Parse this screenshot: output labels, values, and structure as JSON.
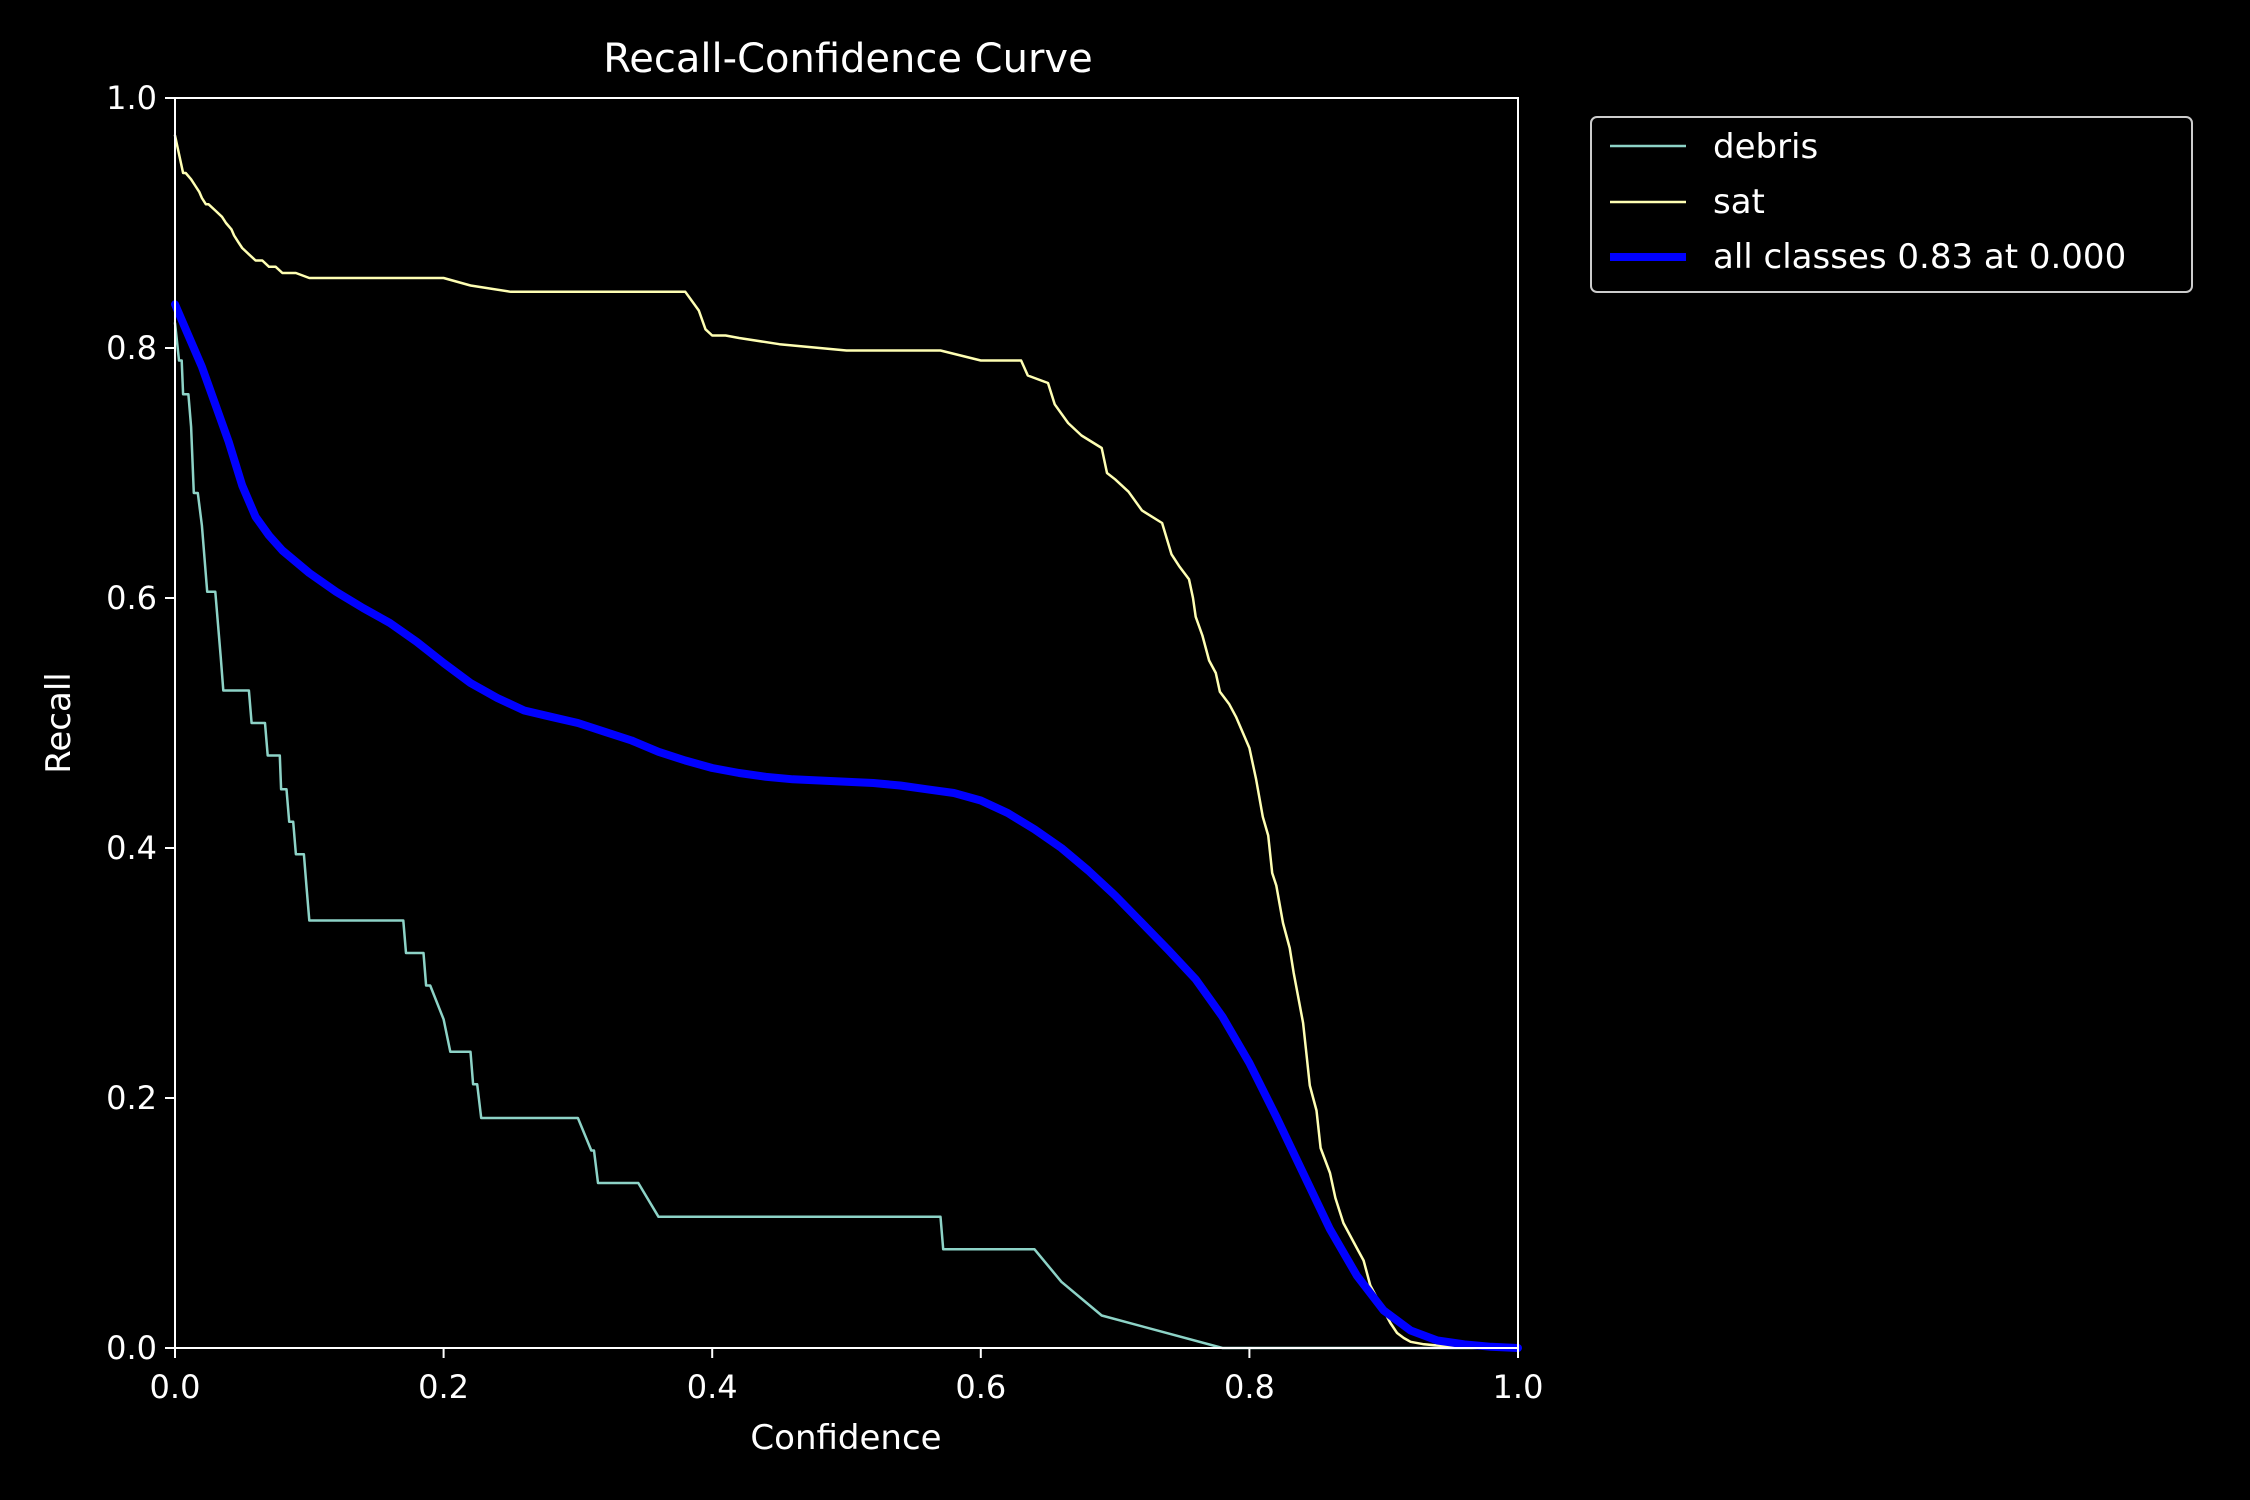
{
  "colors": {
    "background": "#000000",
    "axes": "#ffffff",
    "debris": "#8dd3c7",
    "sat": "#ffffb3",
    "all_classes": "#0000ff"
  },
  "chart_data": {
    "type": "line",
    "title": "Recall-Confidence Curve",
    "xlabel": "Confidence",
    "ylabel": "Recall",
    "xlim": [
      0.0,
      1.0
    ],
    "ylim": [
      0.0,
      1.0
    ],
    "xticks": [
      "0.0",
      "0.2",
      "0.4",
      "0.6",
      "0.8",
      "1.0"
    ],
    "yticks": [
      "0.0",
      "0.2",
      "0.4",
      "0.6",
      "0.8",
      "1.0"
    ],
    "grid": false,
    "legend_position": "outside top-right",
    "series": [
      {
        "name": "debris",
        "color": "#8dd3c7",
        "x": [
          0.0,
          0.002,
          0.003,
          0.005,
          0.006,
          0.008,
          0.01,
          0.012,
          0.014,
          0.017,
          0.02,
          0.022,
          0.024,
          0.027,
          0.03,
          0.032,
          0.034,
          0.036,
          0.055,
          0.057,
          0.067,
          0.069,
          0.078,
          0.079,
          0.083,
          0.085,
          0.088,
          0.09,
          0.096,
          0.098,
          0.1,
          0.102,
          0.17,
          0.172,
          0.185,
          0.187,
          0.19,
          0.2,
          0.205,
          0.22,
          0.222,
          0.225,
          0.228,
          0.3,
          0.31,
          0.312,
          0.315,
          0.345,
          0.36,
          0.57,
          0.572,
          0.64,
          0.66,
          0.69,
          0.78,
          0.8,
          1.0
        ],
        "y": [
          0.82,
          0.8,
          0.79,
          0.79,
          0.763,
          0.763,
          0.763,
          0.737,
          0.684,
          0.684,
          0.658,
          0.632,
          0.605,
          0.605,
          0.605,
          0.579,
          0.553,
          0.526,
          0.526,
          0.5,
          0.5,
          0.474,
          0.474,
          0.447,
          0.447,
          0.421,
          0.421,
          0.395,
          0.395,
          0.368,
          0.342,
          0.342,
          0.342,
          0.316,
          0.316,
          0.29,
          0.29,
          0.263,
          0.237,
          0.237,
          0.211,
          0.211,
          0.184,
          0.184,
          0.158,
          0.158,
          0.132,
          0.132,
          0.105,
          0.105,
          0.079,
          0.079,
          0.053,
          0.026,
          0.0,
          0.0,
          0.0
        ]
      },
      {
        "name": "sat",
        "color": "#ffffb3",
        "x": [
          0.0,
          0.002,
          0.004,
          0.006,
          0.008,
          0.012,
          0.015,
          0.018,
          0.02,
          0.023,
          0.025,
          0.03,
          0.035,
          0.038,
          0.042,
          0.044,
          0.047,
          0.05,
          0.055,
          0.06,
          0.065,
          0.07,
          0.075,
          0.08,
          0.085,
          0.09,
          0.095,
          0.1,
          0.15,
          0.2,
          0.22,
          0.25,
          0.3,
          0.35,
          0.38,
          0.39,
          0.395,
          0.4,
          0.41,
          0.42,
          0.45,
          0.5,
          0.55,
          0.57,
          0.6,
          0.63,
          0.635,
          0.64,
          0.65,
          0.655,
          0.665,
          0.675,
          0.69,
          0.694,
          0.7,
          0.71,
          0.72,
          0.735,
          0.742,
          0.748,
          0.755,
          0.758,
          0.76,
          0.765,
          0.77,
          0.775,
          0.778,
          0.785,
          0.79,
          0.8,
          0.805,
          0.81,
          0.814,
          0.817,
          0.82,
          0.825,
          0.83,
          0.833,
          0.84,
          0.842,
          0.845,
          0.85,
          0.853,
          0.86,
          0.864,
          0.87,
          0.875,
          0.88,
          0.885,
          0.89,
          0.895,
          0.9,
          0.905,
          0.91,
          0.915,
          0.92,
          0.93,
          0.95,
          1.0
        ],
        "y": [
          0.97,
          0.96,
          0.95,
          0.94,
          0.94,
          0.935,
          0.93,
          0.925,
          0.92,
          0.915,
          0.915,
          0.91,
          0.905,
          0.9,
          0.895,
          0.89,
          0.885,
          0.88,
          0.875,
          0.87,
          0.87,
          0.865,
          0.865,
          0.86,
          0.86,
          0.86,
          0.858,
          0.856,
          0.856,
          0.856,
          0.85,
          0.845,
          0.845,
          0.845,
          0.845,
          0.83,
          0.815,
          0.81,
          0.81,
          0.808,
          0.803,
          0.798,
          0.798,
          0.798,
          0.79,
          0.79,
          0.778,
          0.776,
          0.772,
          0.755,
          0.74,
          0.73,
          0.72,
          0.7,
          0.695,
          0.685,
          0.67,
          0.66,
          0.635,
          0.625,
          0.615,
          0.6,
          0.585,
          0.57,
          0.55,
          0.54,
          0.525,
          0.515,
          0.505,
          0.48,
          0.455,
          0.425,
          0.41,
          0.38,
          0.37,
          0.34,
          0.32,
          0.3,
          0.26,
          0.24,
          0.21,
          0.19,
          0.16,
          0.14,
          0.12,
          0.1,
          0.09,
          0.08,
          0.07,
          0.05,
          0.04,
          0.03,
          0.02,
          0.012,
          0.008,
          0.005,
          0.003,
          0.001,
          0.0
        ]
      },
      {
        "name": "all classes 0.83 at 0.000",
        "color": "#0000ff",
        "x": [
          0.0,
          0.01,
          0.02,
          0.03,
          0.04,
          0.05,
          0.06,
          0.07,
          0.08,
          0.1,
          0.12,
          0.14,
          0.16,
          0.18,
          0.2,
          0.22,
          0.24,
          0.26,
          0.28,
          0.3,
          0.32,
          0.34,
          0.36,
          0.38,
          0.4,
          0.42,
          0.44,
          0.46,
          0.48,
          0.5,
          0.52,
          0.54,
          0.56,
          0.58,
          0.6,
          0.62,
          0.64,
          0.66,
          0.68,
          0.7,
          0.72,
          0.74,
          0.76,
          0.78,
          0.8,
          0.82,
          0.84,
          0.86,
          0.88,
          0.9,
          0.92,
          0.94,
          0.96,
          0.98,
          1.0
        ],
        "y": [
          0.835,
          0.81,
          0.785,
          0.755,
          0.725,
          0.69,
          0.665,
          0.65,
          0.638,
          0.62,
          0.605,
          0.592,
          0.58,
          0.565,
          0.548,
          0.532,
          0.52,
          0.51,
          0.505,
          0.5,
          0.493,
          0.486,
          0.477,
          0.47,
          0.464,
          0.46,
          0.457,
          0.455,
          0.454,
          0.453,
          0.452,
          0.45,
          0.447,
          0.444,
          0.438,
          0.428,
          0.415,
          0.4,
          0.382,
          0.362,
          0.34,
          0.318,
          0.295,
          0.265,
          0.228,
          0.185,
          0.14,
          0.095,
          0.058,
          0.03,
          0.014,
          0.006,
          0.003,
          0.001,
          0.0
        ]
      }
    ]
  }
}
